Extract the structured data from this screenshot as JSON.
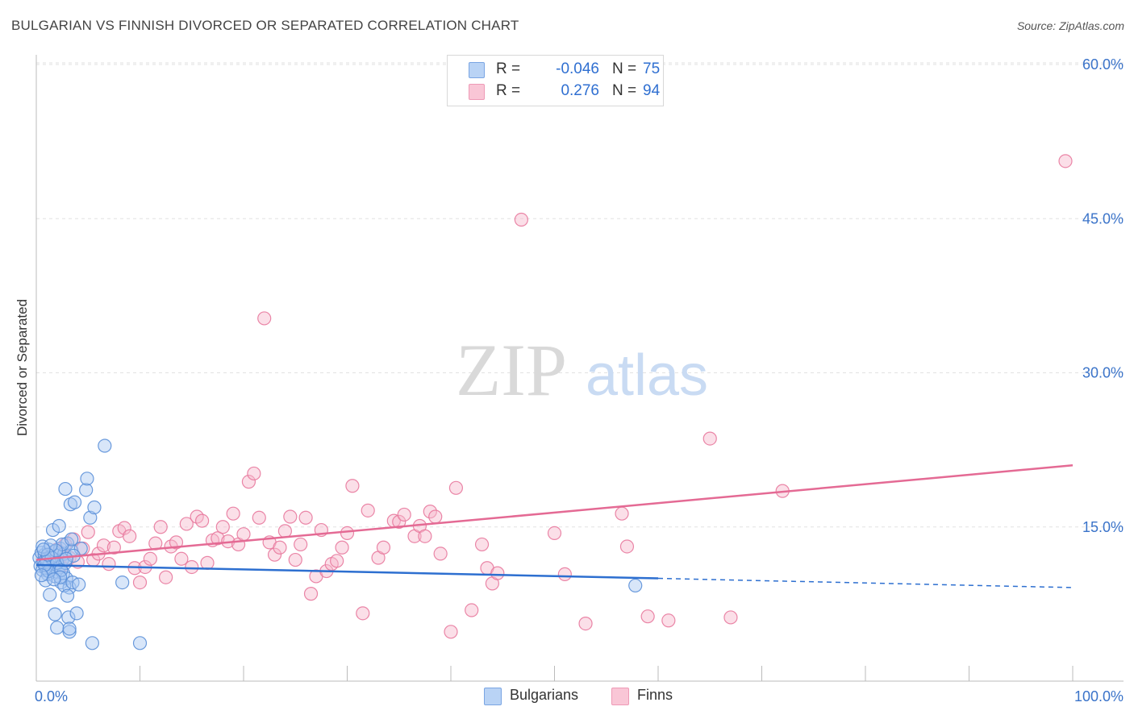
{
  "title": "BULGARIAN VS FINNISH DIVORCED OR SEPARATED CORRELATION CHART",
  "source": "Source: ZipAtlas.com",
  "watermark": {
    "zip": "ZIP",
    "atlas": "atlas"
  },
  "legend": {
    "bulgarians": {
      "r_label": "R =",
      "r_value": "-0.046",
      "n_label": "N =",
      "n_value": "75"
    },
    "finns": {
      "r_label": "R =",
      "r_value": "0.276",
      "n_label": "N =",
      "n_value": "94"
    }
  },
  "bottom_legend": {
    "bulgarians": "Bulgarians",
    "finns": "Finns"
  },
  "colors": {
    "blue_fill": "#a9c8f2",
    "blue_stroke": "#5a8fd8",
    "blue_line": "#2d6fd0",
    "pink_fill": "#f7b8cc",
    "pink_stroke": "#e8799d",
    "pink_line": "#e46a94",
    "axis_text": "#3a73c9",
    "grid": "#e2e2e2"
  },
  "chart_data": {
    "type": "scatter",
    "title": "BULGARIAN VS FINNISH DIVORCED OR SEPARATED CORRELATION CHART",
    "xlabel": "",
    "ylabel": "Divorced or Separated",
    "xlim": [
      0,
      100
    ],
    "ylim": [
      0,
      60
    ],
    "x_tick_labels": [
      "0.0%",
      "100.0%"
    ],
    "y_ticks": [
      15,
      30,
      45,
      60
    ],
    "y_tick_labels": [
      "15.0%",
      "30.0%",
      "45.0%",
      "60.0%"
    ],
    "series": [
      {
        "name": "Bulgarians",
        "r": -0.046,
        "n": 75,
        "trend": {
          "start": [
            0,
            11.3
          ],
          "end": [
            60,
            10.0
          ],
          "dashed_end": [
            100,
            9.1
          ]
        },
        "points": [
          [
            0.3,
            12.0
          ],
          [
            0.4,
            11.2
          ],
          [
            0.5,
            12.5
          ],
          [
            0.6,
            10.8
          ],
          [
            0.7,
            11.6
          ],
          [
            0.8,
            12.3
          ],
          [
            0.9,
            11.0
          ],
          [
            1.0,
            11.9
          ],
          [
            1.1,
            10.4
          ],
          [
            1.2,
            12.8
          ],
          [
            1.3,
            11.4
          ],
          [
            1.4,
            12.1
          ],
          [
            1.5,
            10.9
          ],
          [
            1.6,
            11.7
          ],
          [
            1.7,
            12.6
          ],
          [
            1.8,
            10.2
          ],
          [
            1.9,
            11.3
          ],
          [
            2.0,
            12.2
          ],
          [
            2.1,
            10.6
          ],
          [
            2.2,
            11.1
          ],
          [
            2.3,
            12.9
          ],
          [
            2.4,
            9.6
          ],
          [
            2.5,
            11.8
          ],
          [
            2.6,
            10.5
          ],
          [
            2.7,
            12.4
          ],
          [
            2.8,
            11.5
          ],
          [
            2.9,
            10.0
          ],
          [
            3.0,
            13.4
          ],
          [
            3.2,
            9.1
          ],
          [
            3.4,
            12.7
          ],
          [
            0.6,
            13.1
          ],
          [
            0.9,
            9.8
          ],
          [
            1.3,
            8.4
          ],
          [
            1.6,
            14.7
          ],
          [
            1.8,
            6.5
          ],
          [
            2.0,
            5.2
          ],
          [
            2.2,
            15.1
          ],
          [
            2.5,
            13.3
          ],
          [
            2.7,
            9.3
          ],
          [
            2.8,
            18.7
          ],
          [
            3.0,
            8.3
          ],
          [
            3.1,
            6.2
          ],
          [
            3.2,
            4.8
          ],
          [
            3.3,
            17.2
          ],
          [
            3.4,
            13.8
          ],
          [
            3.5,
            9.6
          ],
          [
            3.7,
            17.4
          ],
          [
            3.9,
            6.6
          ],
          [
            4.1,
            9.4
          ],
          [
            4.3,
            12.9
          ],
          [
            4.8,
            18.6
          ],
          [
            4.9,
            19.7
          ],
          [
            5.2,
            15.9
          ],
          [
            5.6,
            16.9
          ],
          [
            6.6,
            22.9
          ],
          [
            8.3,
            9.6
          ],
          [
            5.4,
            3.7
          ],
          [
            10.0,
            3.7
          ],
          [
            3.2,
            5.1
          ],
          [
            1.0,
            11.6
          ],
          [
            1.5,
            12.0
          ],
          [
            2.0,
            11.5
          ],
          [
            1.2,
            10.7
          ],
          [
            0.8,
            11.3
          ],
          [
            2.4,
            10.8
          ],
          [
            1.9,
            12.7
          ],
          [
            1.4,
            13.2
          ],
          [
            0.5,
            10.3
          ],
          [
            3.6,
            12.2
          ],
          [
            2.9,
            11.9
          ],
          [
            1.1,
            12.3
          ],
          [
            2.3,
            10.1
          ],
          [
            1.7,
            9.9
          ],
          [
            0.7,
            12.8
          ],
          [
            57.8,
            9.3
          ]
        ]
      },
      {
        "name": "Finns",
        "r": 0.276,
        "n": 94,
        "trend": {
          "start": [
            0,
            11.8
          ],
          "end": [
            100,
            21.0
          ]
        },
        "points": [
          [
            0.8,
            11.8
          ],
          [
            1.2,
            12.3
          ],
          [
            1.6,
            11.5
          ],
          [
            2.0,
            12.8
          ],
          [
            2.4,
            11.2
          ],
          [
            2.8,
            13.3
          ],
          [
            3.2,
            12.0
          ],
          [
            3.6,
            13.8
          ],
          [
            4.0,
            11.6
          ],
          [
            4.5,
            12.9
          ],
          [
            5.0,
            14.5
          ],
          [
            5.5,
            11.8
          ],
          [
            6.0,
            12.4
          ],
          [
            6.5,
            13.2
          ],
          [
            7.0,
            11.4
          ],
          [
            7.5,
            13.0
          ],
          [
            8.0,
            14.6
          ],
          [
            8.5,
            14.9
          ],
          [
            9.0,
            14.1
          ],
          [
            9.5,
            11.0
          ],
          [
            10.0,
            9.6
          ],
          [
            10.5,
            11.1
          ],
          [
            11.0,
            11.9
          ],
          [
            11.5,
            13.4
          ],
          [
            12.0,
            15.0
          ],
          [
            12.5,
            10.1
          ],
          [
            13.0,
            13.1
          ],
          [
            13.5,
            13.5
          ],
          [
            14.0,
            11.9
          ],
          [
            14.5,
            15.3
          ],
          [
            15.0,
            11.1
          ],
          [
            15.5,
            16.0
          ],
          [
            16.0,
            15.6
          ],
          [
            16.5,
            11.5
          ],
          [
            17.0,
            13.7
          ],
          [
            17.5,
            13.9
          ],
          [
            18.0,
            15.0
          ],
          [
            18.5,
            13.6
          ],
          [
            19.0,
            16.3
          ],
          [
            19.5,
            13.3
          ],
          [
            20.0,
            14.3
          ],
          [
            20.5,
            19.4
          ],
          [
            21.0,
            20.2
          ],
          [
            21.5,
            15.9
          ],
          [
            22.0,
            35.3
          ],
          [
            22.5,
            13.5
          ],
          [
            23.0,
            12.3
          ],
          [
            23.5,
            13.0
          ],
          [
            24.0,
            14.6
          ],
          [
            24.5,
            16.0
          ],
          [
            25.0,
            11.8
          ],
          [
            25.5,
            13.3
          ],
          [
            26.0,
            15.9
          ],
          [
            26.5,
            8.5
          ],
          [
            27.0,
            10.2
          ],
          [
            27.5,
            14.7
          ],
          [
            28.0,
            10.7
          ],
          [
            28.5,
            11.4
          ],
          [
            29.0,
            11.7
          ],
          [
            29.5,
            13.0
          ],
          [
            30.0,
            14.4
          ],
          [
            30.5,
            19.0
          ],
          [
            31.5,
            6.6
          ],
          [
            32.0,
            16.6
          ],
          [
            33.0,
            12.0
          ],
          [
            33.5,
            13.0
          ],
          [
            34.5,
            15.6
          ],
          [
            35.0,
            15.5
          ],
          [
            35.5,
            16.2
          ],
          [
            36.5,
            14.1
          ],
          [
            37.0,
            15.1
          ],
          [
            37.5,
            14.1
          ],
          [
            38.0,
            16.5
          ],
          [
            38.5,
            16.0
          ],
          [
            39.0,
            12.4
          ],
          [
            40.0,
            4.8
          ],
          [
            40.5,
            18.8
          ],
          [
            42.0,
            6.9
          ],
          [
            43.0,
            13.3
          ],
          [
            43.5,
            11.0
          ],
          [
            44.0,
            9.5
          ],
          [
            44.5,
            10.5
          ],
          [
            46.8,
            44.9
          ],
          [
            50.0,
            14.4
          ],
          [
            51.0,
            10.4
          ],
          [
            53.0,
            5.6
          ],
          [
            56.5,
            16.3
          ],
          [
            57.0,
            13.1
          ],
          [
            59.0,
            6.3
          ],
          [
            61.0,
            5.9
          ],
          [
            65.0,
            23.6
          ],
          [
            67.0,
            6.2
          ],
          [
            72.0,
            18.5
          ],
          [
            99.3,
            50.6
          ]
        ]
      }
    ]
  }
}
